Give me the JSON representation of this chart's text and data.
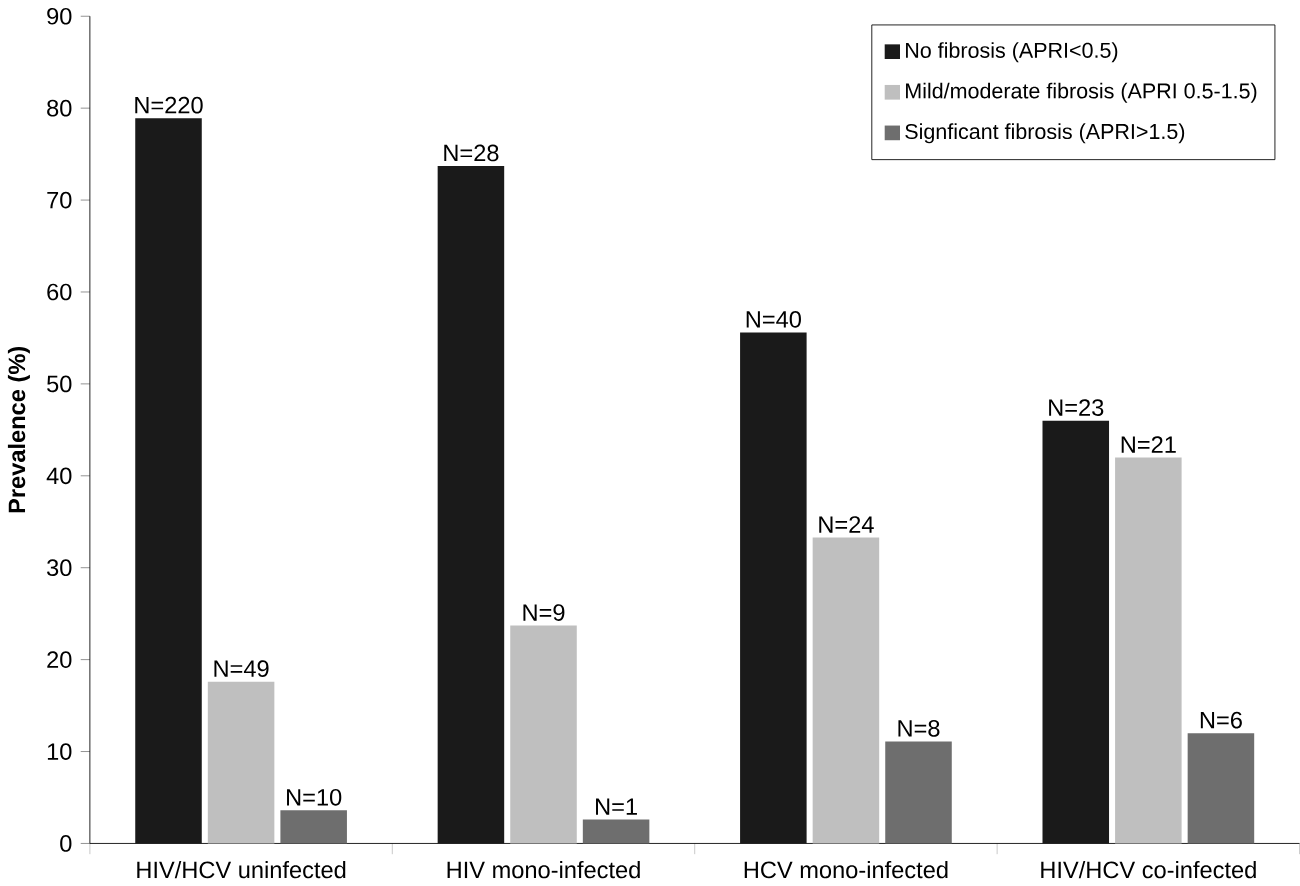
{
  "chart_data": {
    "type": "bar",
    "ylabel": "Prevalence  (%)",
    "categories": [
      "HIV/HCV uninfected",
      "HIV mono-infected",
      "HCV mono-infected",
      "HIV/HCV co-infected"
    ],
    "series": [
      {
        "name": "No fibrosis (APRI<0.5)",
        "color": "#1a1a1a",
        "values": [
          78.9,
          73.7,
          55.6,
          46
        ]
      },
      {
        "name": "Mild/moderate fibrosis (APRI 0.5-1.5)",
        "color": "#bfbfbf",
        "values": [
          17.6,
          23.7,
          33.3,
          42
        ]
      },
      {
        "name": "Signficant fibrosis (APRI>1.5)",
        "color": "#6e6e6e",
        "values": [
          3.6,
          2.6,
          11.1,
          12
        ]
      }
    ],
    "annotations": [
      "N=220",
      "N=28",
      "N=40",
      "N=23",
      "N=49",
      "N=9",
      "N=24",
      "N=21",
      "N=10",
      "N=1",
      "N=8",
      "N=6"
    ],
    "ylim": [
      0,
      90
    ],
    "yticks": [
      0,
      10,
      20,
      30,
      40,
      50,
      60,
      70,
      80,
      90
    ],
    "grid": false,
    "legend": "top right"
  }
}
